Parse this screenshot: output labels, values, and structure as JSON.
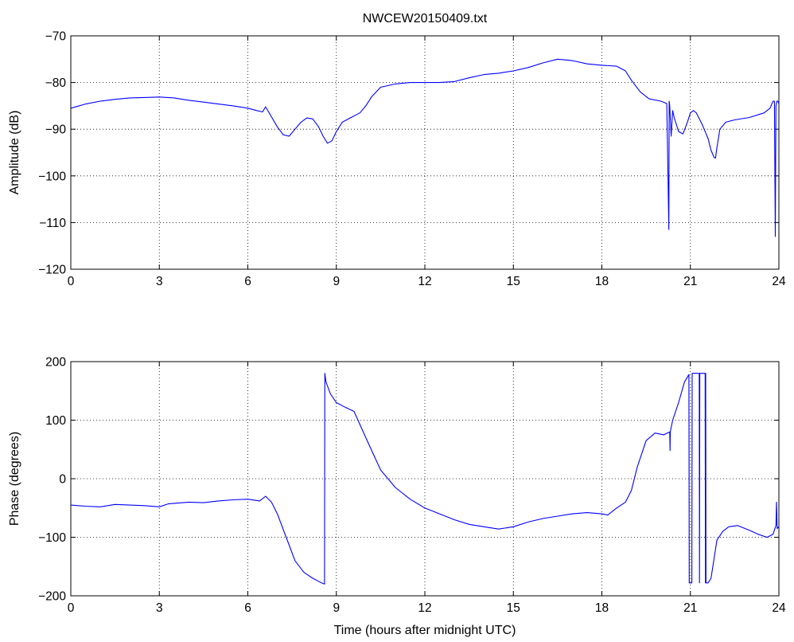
{
  "chart_data": [
    {
      "type": "line",
      "title": "NWCEW20150409.txt",
      "xlabel": "",
      "ylabel": "Amplitude (dB)",
      "xlim": [
        0,
        24
      ],
      "ylim": [
        -120,
        -70
      ],
      "xticks": [
        0,
        3,
        6,
        9,
        12,
        15,
        18,
        21,
        24
      ],
      "xtick_labels": [
        "0",
        "3",
        "6",
        "9",
        "12",
        "15",
        "18",
        "21",
        "24"
      ],
      "yticks": [
        -120,
        -110,
        -100,
        -90,
        -80,
        -70
      ],
      "ytick_labels": [
        "−120",
        "−110",
        "−100",
        "−90",
        "−80",
        "−70"
      ],
      "grid": true,
      "series_color": "#0000ff",
      "x": [
        0,
        0.5,
        1,
        1.5,
        2,
        2.5,
        3,
        3.5,
        4,
        4.5,
        5,
        5.5,
        6,
        6.3,
        6.5,
        6.6,
        6.75,
        7,
        7.2,
        7.4,
        7.6,
        7.8,
        8,
        8.2,
        8.4,
        8.55,
        8.7,
        8.85,
        9,
        9.2,
        9.5,
        9.8,
        10,
        10.2,
        10.5,
        11,
        11.5,
        12,
        12.5,
        13,
        13.5,
        14,
        14.5,
        15,
        15.5,
        16,
        16.5,
        17,
        17.5,
        18,
        18.5,
        18.8,
        19,
        19.3,
        19.6,
        20,
        20.2,
        20.27,
        20.28,
        20.3,
        20.35,
        20.4,
        20.45,
        20.5,
        20.6,
        20.75,
        20.9,
        21,
        21.1,
        21.2,
        21.4,
        21.6,
        21.7,
        21.8,
        21.85,
        21.9,
        22,
        22.2,
        22.5,
        23,
        23.5,
        23.7,
        23.8,
        23.85,
        23.88,
        23.9,
        23.93,
        23.96,
        24
      ],
      "y": [
        -85.5,
        -84.6,
        -84,
        -83.6,
        -83.3,
        -83.2,
        -83.1,
        -83.3,
        -83.8,
        -84.2,
        -84.6,
        -85,
        -85.5,
        -86,
        -86.3,
        -85.2,
        -86.8,
        -89.5,
        -91.2,
        -91.5,
        -90,
        -88.5,
        -87.6,
        -87.8,
        -89.5,
        -91.5,
        -93,
        -92.5,
        -90.5,
        -88.5,
        -87.5,
        -86.5,
        -85,
        -83,
        -81,
        -80.3,
        -80,
        -80,
        -80,
        -79.8,
        -79,
        -78.3,
        -78,
        -77.5,
        -76.8,
        -75.8,
        -75,
        -75.3,
        -76,
        -76.3,
        -76.5,
        -77.5,
        -79.5,
        -82,
        -83.5,
        -84,
        -84.5,
        -111.5,
        -84,
        -85,
        -91.5,
        -86,
        -87.5,
        -88.5,
        -90.5,
        -91,
        -88.5,
        -86.5,
        -86,
        -86.5,
        -89,
        -92,
        -94.5,
        -96,
        -96.2,
        -94,
        -90,
        -88.5,
        -88,
        -87.5,
        -86.5,
        -85.5,
        -84,
        -84,
        -113,
        -85,
        -84,
        -84,
        -84.5
      ]
    },
    {
      "type": "line",
      "title": "",
      "xlabel": "Time (hours after midnight UTC)",
      "ylabel": "Phase (degrees)",
      "xlim": [
        0,
        24
      ],
      "ylim": [
        -200,
        200
      ],
      "xticks": [
        0,
        3,
        6,
        9,
        12,
        15,
        18,
        21,
        24
      ],
      "xtick_labels": [
        "0",
        "3",
        "6",
        "9",
        "12",
        "15",
        "18",
        "21",
        "24"
      ],
      "yticks": [
        -200,
        -100,
        0,
        100,
        200
      ],
      "ytick_labels": [
        "−200",
        "−100",
        "0",
        "100",
        "200"
      ],
      "grid": true,
      "series_color": "#0000ff",
      "x": [
        0,
        0.5,
        1,
        1.5,
        2,
        2.5,
        3,
        3.3,
        4,
        4.5,
        5,
        5.5,
        6,
        6.4,
        6.6,
        6.8,
        7,
        7.3,
        7.6,
        7.9,
        8.2,
        8.5,
        8.6,
        8.61,
        8.65,
        8.8,
        9,
        9.3,
        9.6,
        10,
        10.5,
        11,
        11.5,
        12,
        12.5,
        13,
        13.5,
        14,
        14.5,
        15,
        15.5,
        16,
        16.5,
        17,
        17.5,
        18,
        18.2,
        18.5,
        18.8,
        19,
        19.2,
        19.5,
        19.8,
        20.1,
        20.3,
        20.31,
        20.32,
        20.4,
        20.6,
        20.8,
        20.95,
        20.96,
        21.0,
        21.05,
        21.06,
        21.3,
        21.31,
        21.32,
        21.33,
        21.5,
        21.51,
        21.52,
        21.53,
        21.6,
        21.7,
        21.9,
        22.1,
        22.3,
        22.6,
        23,
        23.3,
        23.6,
        23.8,
        23.9,
        23.92,
        23.94,
        24
      ],
      "y": [
        -45,
        -47,
        -48,
        -44,
        -45,
        -46,
        -48,
        -43,
        -40,
        -41,
        -38,
        -36,
        -35,
        -38,
        -30,
        -40,
        -60,
        -100,
        -140,
        -160,
        -170,
        -178,
        -180,
        180,
        165,
        145,
        130,
        122,
        115,
        70,
        15,
        -15,
        -35,
        -50,
        -60,
        -70,
        -78,
        -82,
        -86,
        -82,
        -74,
        -68,
        -64,
        -60,
        -58,
        -60,
        -62,
        -50,
        -40,
        -20,
        20,
        65,
        78,
        75,
        80,
        48,
        80,
        100,
        130,
        165,
        178,
        -178,
        -178,
        -178,
        180,
        180,
        -178,
        180,
        180,
        180,
        -178,
        180,
        -178,
        -178,
        -170,
        -105,
        -90,
        -82,
        -80,
        -88,
        -95,
        -100,
        -95,
        -80,
        -40,
        -85,
        -82
      ]
    }
  ]
}
